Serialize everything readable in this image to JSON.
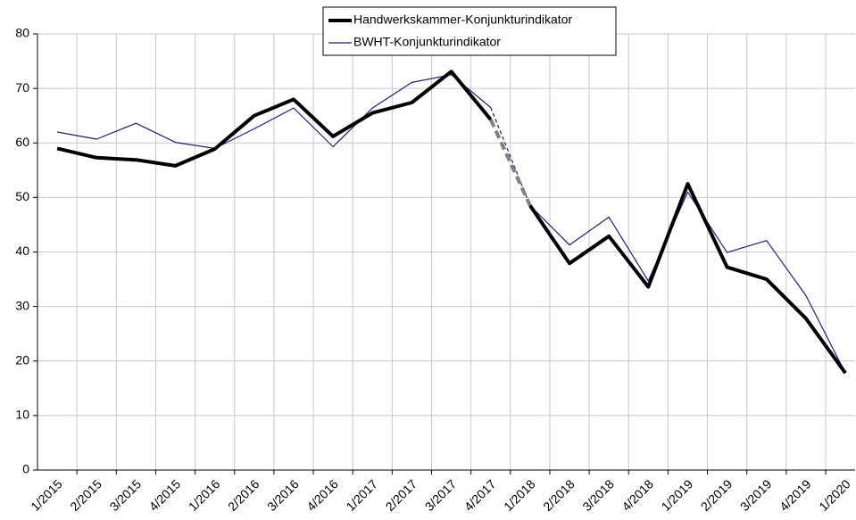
{
  "chart_data": {
    "type": "line",
    "categories": [
      "1/2015",
      "2/2015",
      "3/2015",
      "4/2015",
      "1/2016",
      "2/2016",
      "3/2016",
      "4/2016",
      "1/2017",
      "2/2017",
      "3/2017",
      "4/2017",
      "1/2018",
      "2/2018",
      "3/2018",
      "4/2018",
      "1/2019",
      "2/2019",
      "3/2019",
      "4/2019",
      "1/2020"
    ],
    "series": [
      {
        "name": "Handwerkskammer-Konjunkturindikator",
        "color": "#000000",
        "dash_color": "#808080",
        "width": 4,
        "values": [
          59,
          57.3,
          56.9,
          55.8,
          58.9,
          65,
          68,
          61.2,
          65.5,
          67.4,
          73.1,
          64.3,
          48.5,
          37.9,
          42.9,
          33.6,
          52.5,
          37.2,
          35,
          27.8,
          17.8
        ]
      },
      {
        "name": "BWHT-Konjunkturindikator",
        "color": "#1f1f7a",
        "dash_color": "#1f1f7a",
        "width": 1.2,
        "values": [
          62,
          60.7,
          63.6,
          60.1,
          59,
          62.6,
          66.4,
          59.3,
          66.4,
          71.1,
          72.5,
          66.5,
          48.5,
          41.3,
          46.4,
          34.7,
          51,
          39.9,
          42.1,
          32,
          17.8
        ]
      }
    ],
    "dashed_between": [
      11,
      12
    ],
    "ylim": [
      0,
      80
    ],
    "yticks": [
      0,
      10,
      20,
      30,
      40,
      50,
      60,
      70,
      80
    ],
    "grid": true,
    "legend": "top"
  }
}
